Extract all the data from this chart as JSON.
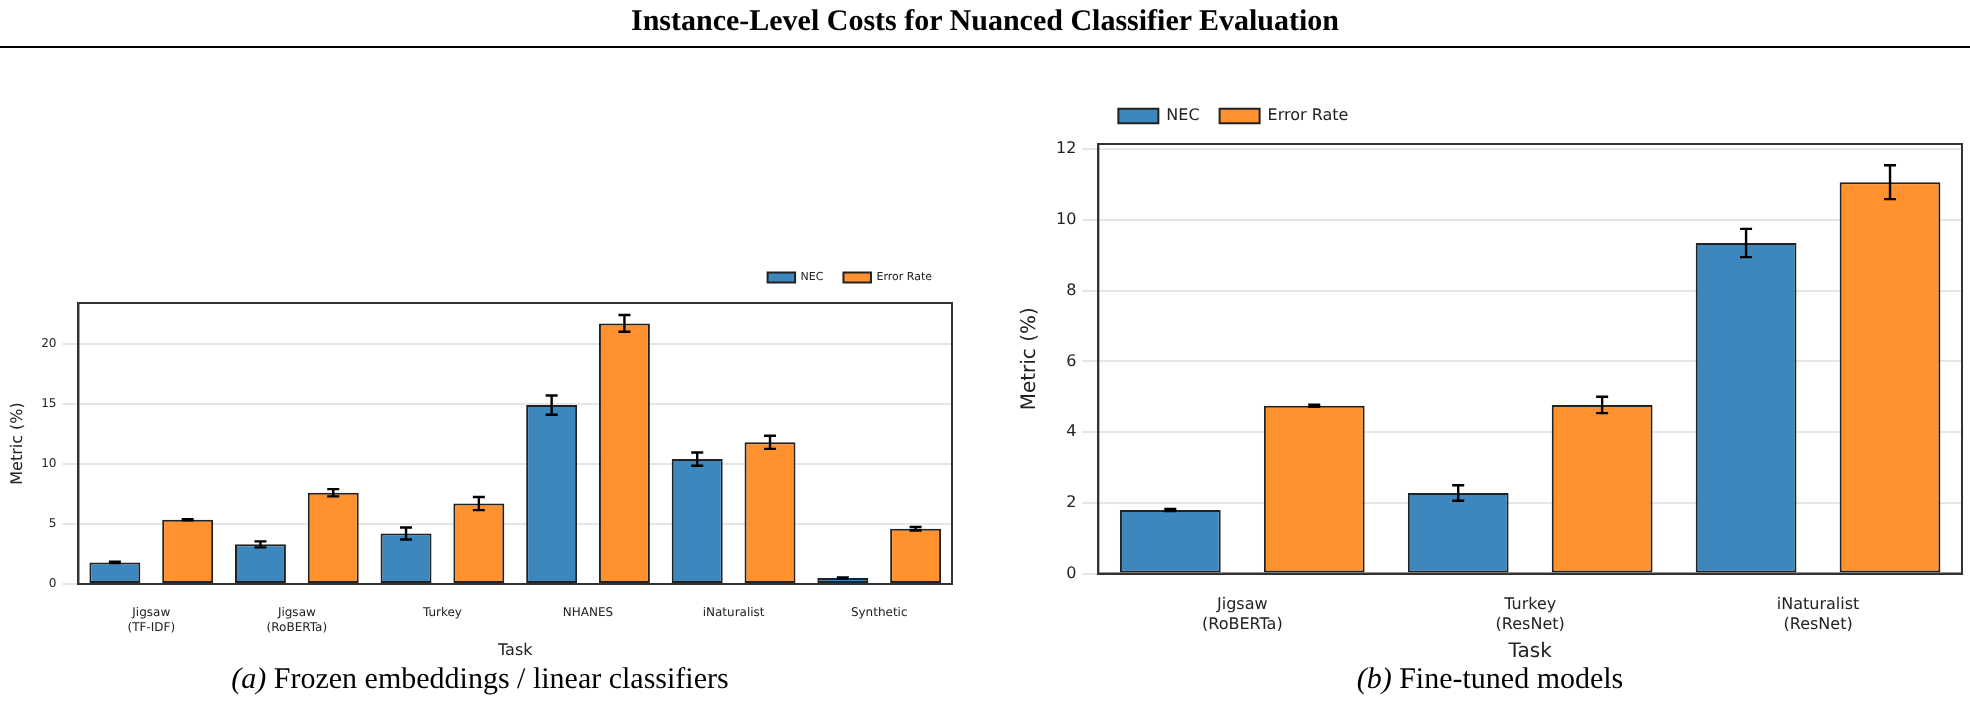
{
  "chart_data": [
    {
      "type": "bar",
      "title": "Instance-Level Costs for Nuanced Classifier Evaluation",
      "xlabel": "Task",
      "ylabel": "Metric (%)",
      "annotations": [
        "(a) Frozen embeddings / linear classifiers"
      ],
      "categories": [
        "Jigsaw\n(TF-IDF)",
        "Jigsaw\n(RoBERTa)",
        "Turkey",
        "NHANES",
        "iNaturalist",
        "Synthetic"
      ],
      "series": [
        {
          "name": "NEC",
          "color": "#3d87bf",
          "values": [
            1.8,
            3.3,
            4.2,
            14.9,
            10.4,
            0.5
          ],
          "errors": [
            0.05,
            0.25,
            0.5,
            0.8,
            0.55,
            0.05
          ]
        },
        {
          "name": "Error Rate",
          "color": "#ff922e",
          "values": [
            5.35,
            7.6,
            6.7,
            21.7,
            11.8,
            4.6
          ],
          "errors": [
            0.05,
            0.3,
            0.55,
            0.7,
            0.55,
            0.15
          ]
        }
      ],
      "ylim": [
        0,
        23.4
      ],
      "yticks": [
        0,
        5,
        10,
        15,
        20
      ],
      "grid": "y",
      "legend": "top right"
    },
    {
      "type": "bar",
      "xlabel": "Task",
      "ylabel": "Metric (%)",
      "annotations": [
        "(b) Fine-tuned models"
      ],
      "categories": [
        "Jigsaw\n(RoBERTa)",
        "Turkey\n(ResNet)",
        "iNaturalist\n(ResNet)"
      ],
      "series": [
        {
          "name": "NEC",
          "color": "#3d87bf",
          "values": [
            1.8,
            2.28,
            9.35
          ],
          "errors": [
            0.03,
            0.22,
            0.4
          ]
        },
        {
          "name": "Error Rate",
          "color": "#ff922e",
          "values": [
            4.75,
            4.77,
            11.07
          ],
          "errors": [
            0.03,
            0.23,
            0.48
          ]
        }
      ],
      "ylim": [
        0,
        12.15
      ],
      "yticks": [
        0,
        2,
        4,
        6,
        8,
        10,
        12
      ],
      "grid": "y",
      "legend": "top left"
    }
  ]
}
